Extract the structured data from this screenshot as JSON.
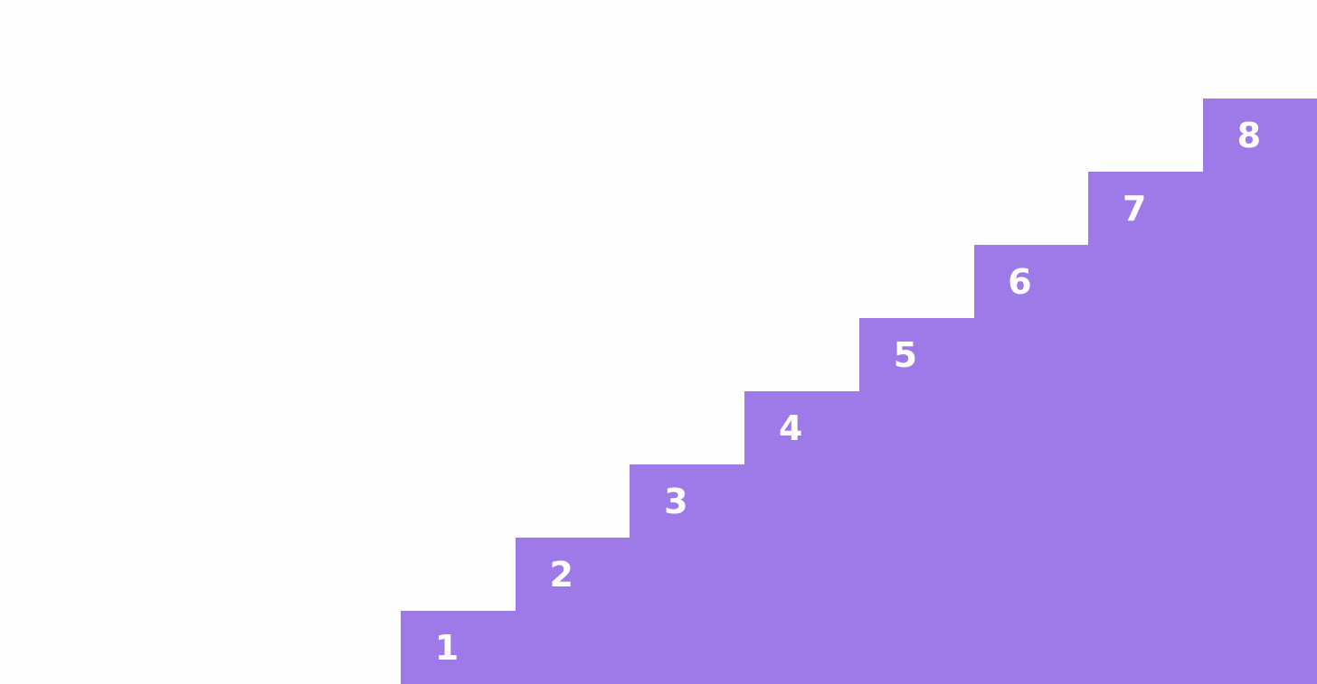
{
  "colors": {
    "background": "#fefefe",
    "step_fill": "#9e7ae9",
    "label": "#ffffff"
  },
  "steps": [
    {
      "label": "1"
    },
    {
      "label": "2"
    },
    {
      "label": "3"
    },
    {
      "label": "4"
    },
    {
      "label": "5"
    },
    {
      "label": "6"
    },
    {
      "label": "7"
    },
    {
      "label": "8"
    }
  ]
}
